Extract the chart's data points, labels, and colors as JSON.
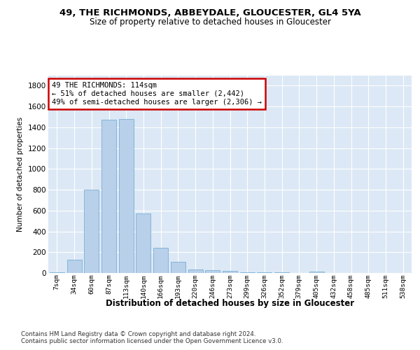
{
  "title1": "49, THE RICHMONDS, ABBEYDALE, GLOUCESTER, GL4 5YA",
  "title2": "Size of property relative to detached houses in Gloucester",
  "xlabel": "Distribution of detached houses by size in Gloucester",
  "ylabel": "Number of detached properties",
  "categories": [
    "7sqm",
    "34sqm",
    "60sqm",
    "87sqm",
    "113sqm",
    "140sqm",
    "166sqm",
    "193sqm",
    "220sqm",
    "246sqm",
    "273sqm",
    "299sqm",
    "326sqm",
    "352sqm",
    "379sqm",
    "405sqm",
    "432sqm",
    "458sqm",
    "485sqm",
    "511sqm",
    "538sqm"
  ],
  "values": [
    10,
    125,
    800,
    1470,
    1480,
    570,
    245,
    105,
    35,
    30,
    20,
    5,
    5,
    10,
    2,
    15,
    0,
    0,
    0,
    0,
    0
  ],
  "highlight_index": 4,
  "bar_color": "#b8d0ea",
  "bar_edge_color": "#7aafd4",
  "bg_color": "#dce8f5",
  "grid_color": "#ffffff",
  "annotation_box_text": "49 THE RICHMONDS: 114sqm\n← 51% of detached houses are smaller (2,442)\n49% of semi-detached houses are larger (2,306) →",
  "annotation_box_color": "#ffffff",
  "annotation_box_edge_color": "#cc0000",
  "footer1": "Contains HM Land Registry data © Crown copyright and database right 2024.",
  "footer2": "Contains public sector information licensed under the Open Government Licence v3.0.",
  "ylim": [
    0,
    1900
  ],
  "yticks": [
    0,
    200,
    400,
    600,
    800,
    1000,
    1200,
    1400,
    1600,
    1800
  ]
}
